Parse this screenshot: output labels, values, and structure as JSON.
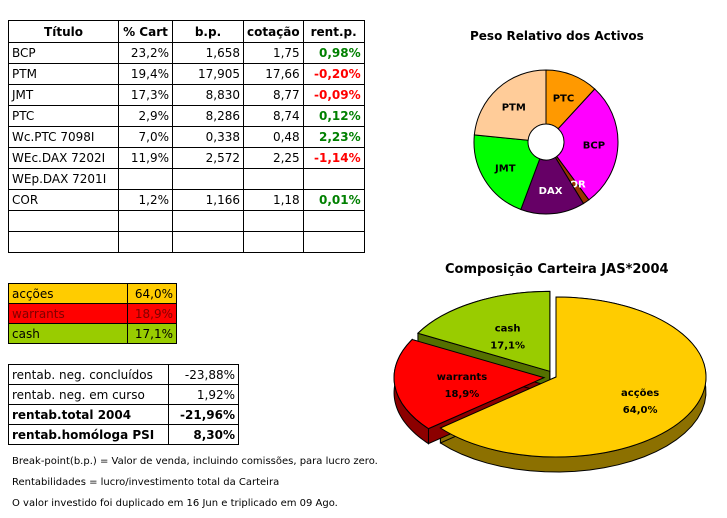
{
  "holdings": {
    "headers": [
      "Título",
      "% Cart",
      "b.p.",
      "cotação",
      "rent.p."
    ],
    "rows": [
      {
        "name": "BCP",
        "pct": "23,2%",
        "bp": "1,658",
        "cot": "1,75",
        "rent": "0,98%",
        "pos": true
      },
      {
        "name": "PTM",
        "pct": "19,4%",
        "bp": "17,905",
        "cot": "17,66",
        "rent": "-0,20%",
        "pos": false
      },
      {
        "name": "JMT",
        "pct": "17,3%",
        "bp": "8,830",
        "cot": "8,77",
        "rent": "-0,09%",
        "pos": false
      },
      {
        "name": "PTC",
        "pct": "2,9%",
        "bp": "8,286",
        "cot": "8,74",
        "rent": "0,12%",
        "pos": true
      },
      {
        "name": "Wc.PTC 7098I",
        "pct": "7,0%",
        "bp": "0,338",
        "cot": "0,48",
        "rent": "2,23%",
        "pos": true
      },
      {
        "name": "WEc.DAX 7202I",
        "pct": "11,9%",
        "bp": "2,572",
        "cot": "2,25",
        "rent": "-1,14%",
        "pos": false
      },
      {
        "name": "WEp.DAX 7201I",
        "pct": "",
        "bp": "",
        "cot": "",
        "rent": "",
        "pos": true
      },
      {
        "name": "COR",
        "pct": "1,2%",
        "bp": "1,166",
        "cot": "1,18",
        "rent": "0,01%",
        "pos": true
      },
      {
        "name": "",
        "pct": "",
        "bp": "",
        "cot": "",
        "rent": "",
        "pos": true
      },
      {
        "name": "",
        "pct": "",
        "bp": "",
        "cot": "",
        "rent": "",
        "pos": true
      }
    ]
  },
  "allocation": [
    {
      "label": "acções",
      "value": "64,0%",
      "color": "#ffcc00",
      "text_color": "#000000"
    },
    {
      "label": "warrants",
      "value": "18,9%",
      "color": "#ff0000",
      "text_color": "#800000"
    },
    {
      "label": "cash",
      "value": "17,1%",
      "color": "#99cc00",
      "text_color": "#000000"
    }
  ],
  "returns": [
    {
      "label": "rentab. neg. concluídos",
      "value": "-23,88%",
      "bold": false
    },
    {
      "label": "rentab. neg. em curso",
      "value": "1,92%",
      "bold": false
    },
    {
      "label": "rentab.total 2004",
      "value": "-21,96%",
      "bold": true
    },
    {
      "label": "rentab.homóloga PSI",
      "value": "8,30%",
      "bold": true
    }
  ],
  "notes": [
    "Break-point(b.p.) = Valor de venda, incluindo comissões, para lucro zero.",
    "Rentabilidades = lucro/investimento total da Carteira",
    "O valor investido foi duplicado em 16 Jun e triplicado em 09 Ago."
  ],
  "colors": {
    "positive": "#008000",
    "negative": "#ff0000"
  },
  "chart_data": [
    {
      "type": "pie",
      "variant": "doughnut",
      "title": "Peso Relativo dos Activos",
      "labels": [
        "PTC",
        "BCP",
        "COR",
        "DAX",
        "JMT",
        "PTM"
      ],
      "values": [
        9.8,
        23.2,
        1.2,
        11.9,
        17.3,
        19.4
      ],
      "colors": [
        "#ff9900",
        "#ff00ff",
        "#993300",
        "#660066",
        "#00ff00",
        "#ffcc99"
      ],
      "legend": "none"
    },
    {
      "type": "pie",
      "variant": "3d-exploded",
      "title": "Composição Carteira JAS*2004",
      "labels": [
        "acções",
        "warrants",
        "cash"
      ],
      "values": [
        64.0,
        18.9,
        17.1
      ],
      "value_labels": [
        "64,0%",
        "18,9%",
        "17,1%"
      ],
      "colors": [
        "#ffcc00",
        "#ff0000",
        "#99cc00"
      ],
      "legend": "none"
    }
  ]
}
